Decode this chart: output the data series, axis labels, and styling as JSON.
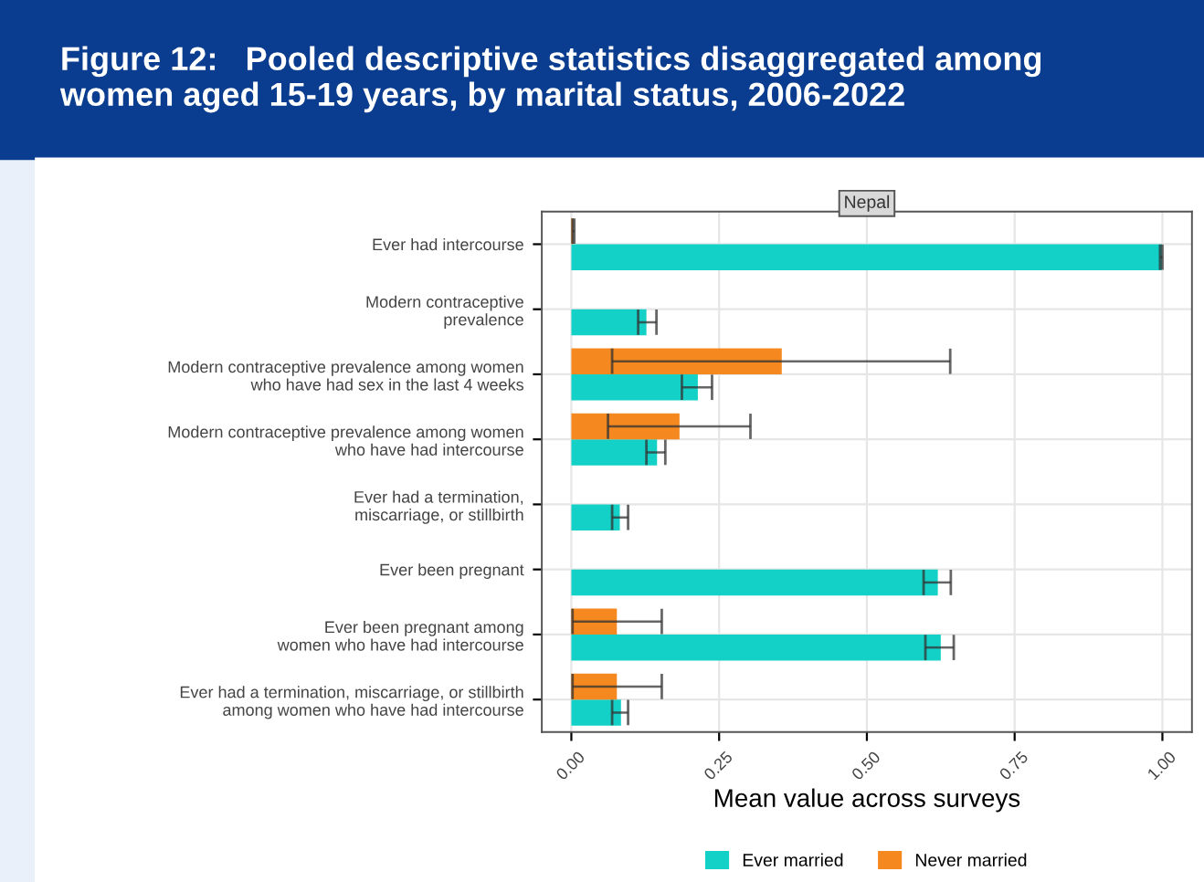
{
  "chart_data": {
    "type": "bar",
    "orientation": "horizontal",
    "title": "Figure 12:   Pooled descriptive statistics disaggregated among\nwomen aged 15-19 years, by marital status, 2006-2022",
    "subtitle": "Nepal",
    "xlabel": "Mean value across surveys",
    "categories": [
      "Ever had intercourse",
      "Modern contraceptive\nprevalence",
      "Modern contraceptive prevalence among women\nwho have had sex in the last 4 weeks",
      "Modern contraceptive prevalence among women\nwho have had intercourse",
      "Ever had a termination,\nmiscarriage, or stillbirth",
      "Ever been pregnant",
      "Ever been pregnant among\nwomen who have had intercourse",
      "Ever had a termination, miscarriage, or stillbirth\namong women who have had intercourse"
    ],
    "series": [
      {
        "name": "Ever married",
        "color": "#13d1c6",
        "values": [
          0.999,
          0.127,
          0.214,
          0.145,
          0.082,
          0.62,
          0.625,
          0.084
        ],
        "errors": [
          [
            0.996,
            1.0
          ],
          [
            0.113,
            0.144
          ],
          [
            0.187,
            0.238
          ],
          [
            0.127,
            0.159
          ],
          [
            0.069,
            0.096
          ],
          [
            0.596,
            0.642
          ],
          [
            0.599,
            0.647
          ],
          [
            0.069,
            0.096
          ]
        ]
      },
      {
        "name": "Never married",
        "color": "#f5891f",
        "values": [
          0.003,
          0,
          0.356,
          0.183,
          0,
          0,
          0.077,
          0.077
        ],
        "errors": [
          [
            0.002,
            0.005
          ],
          null,
          [
            0.069,
            0.641
          ],
          [
            0.062,
            0.303
          ],
          null,
          null,
          [
            0.002,
            0.153
          ],
          [
            0.002,
            0.153
          ]
        ]
      }
    ],
    "xlim": [
      -0.05,
      1.05
    ],
    "xticks": [
      {
        "value": 0,
        "label": "0.00"
      },
      {
        "value": 0.25,
        "label": "0.25"
      },
      {
        "value": 0.5,
        "label": "0.50"
      },
      {
        "value": 0.75,
        "label": "0.75"
      },
      {
        "value": 1,
        "label": "1.00"
      }
    ],
    "grid": true,
    "legend": "bottom"
  }
}
